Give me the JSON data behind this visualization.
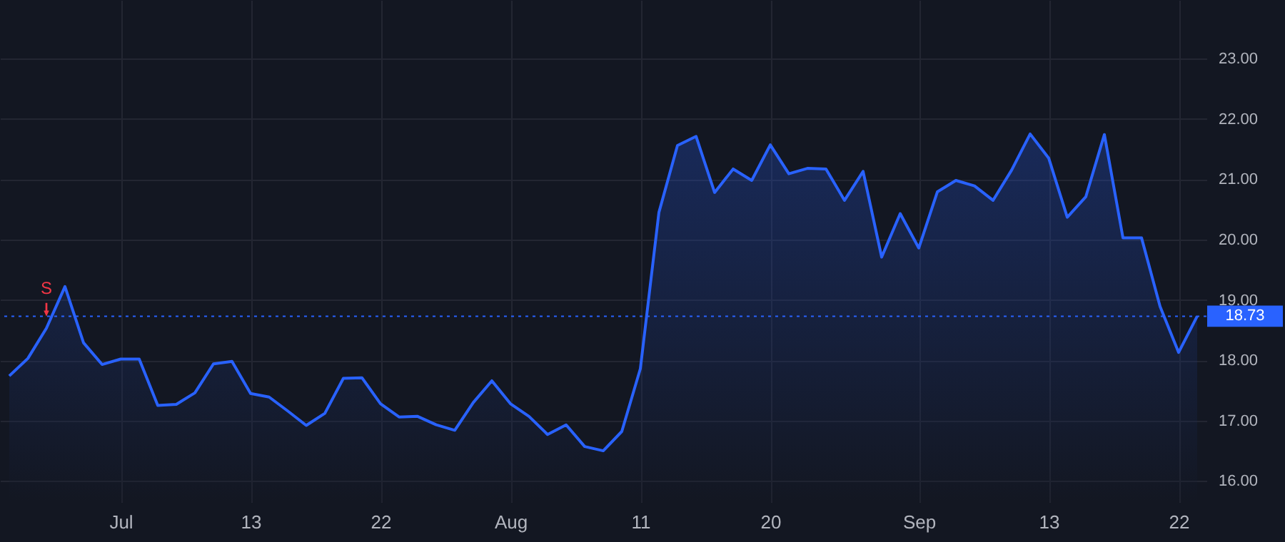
{
  "chart_data": {
    "type": "area",
    "categories": [
      null,
      null,
      null,
      null,
      null,
      null,
      "Jul",
      null,
      null,
      null,
      null,
      null,
      null,
      "13",
      null,
      null,
      null,
      null,
      null,
      null,
      "22",
      null,
      null,
      null,
      null,
      null,
      null,
      "Aug",
      null,
      null,
      null,
      null,
      null,
      null,
      "11",
      null,
      null,
      null,
      null,
      null,
      null,
      "20",
      null,
      null,
      null,
      null,
      null,
      null,
      null,
      "Sep",
      null,
      null,
      null,
      null,
      null,
      null,
      "13",
      null,
      null,
      null,
      null,
      null,
      null,
      "22",
      null
    ],
    "series": [
      {
        "color": "#2962ff",
        "values": [
          17.74,
          18.03,
          18.53,
          19.22,
          18.29,
          17.93,
          18.02,
          18.02,
          17.25,
          17.27,
          17.46,
          17.94,
          17.98,
          17.45,
          17.39,
          17.16,
          16.92,
          17.12,
          17.7,
          17.71,
          17.28,
          17.06,
          17.07,
          16.93,
          16.84,
          17.3,
          17.66,
          17.28,
          17.07,
          16.77,
          16.93,
          16.57,
          16.5,
          16.82,
          17.86,
          20.45,
          21.56,
          21.71,
          20.78,
          21.17,
          20.98,
          21.57,
          21.09,
          21.18,
          21.17,
          20.65,
          21.13,
          19.71,
          20.43,
          19.86,
          20.79,
          20.98,
          20.89,
          20.65,
          21.15,
          21.75,
          21.35,
          20.37,
          20.71,
          21.74,
          20.03,
          20.03,
          18.89,
          18.13,
          18.73
        ]
      }
    ],
    "ylim": [
      15.65,
      23.97
    ],
    "yticks": [
      {
        "value": 16,
        "label": "16.00"
      },
      {
        "value": 17,
        "label": "17.00"
      },
      {
        "value": 18,
        "label": "18.00"
      },
      {
        "value": 19,
        "label": "19.00"
      },
      {
        "value": 20,
        "label": "20.00"
      },
      {
        "value": 21,
        "label": "21.00"
      },
      {
        "value": 22,
        "label": "22.00"
      },
      {
        "value": 23,
        "label": "23.00"
      }
    ],
    "ref_lines": [
      {
        "axis": "y",
        "value": 18.73,
        "label": "18.73",
        "color": "#2962ff",
        "line_style": "dotted"
      }
    ],
    "annotations": [
      {
        "text": "S",
        "y": 18.53
      }
    ],
    "grid": true
  }
}
